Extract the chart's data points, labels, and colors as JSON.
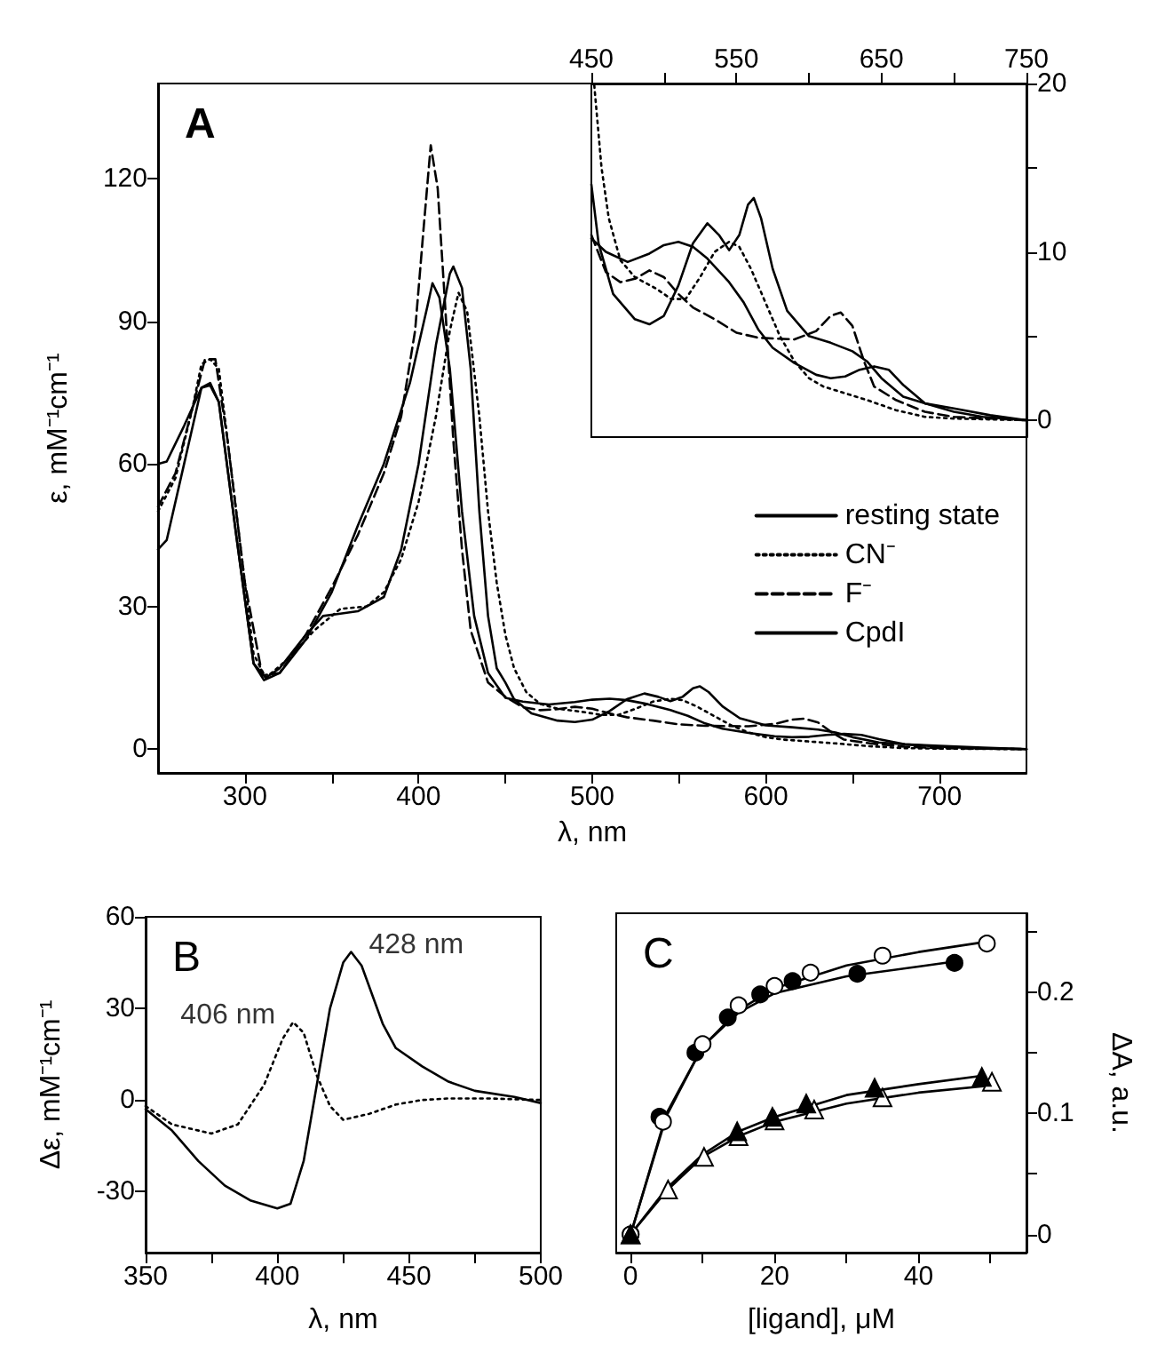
{
  "chart_data": [
    {
      "type": "line",
      "title": "A",
      "xlabel": "λ, nm",
      "ylabel": "ε, mM⁻¹cm⁻¹",
      "xlim": [
        250,
        750
      ],
      "ylim": [
        -5,
        140
      ],
      "xticks": [
        300,
        {
          "value": 350,
          "label": null
        },
        400,
        {
          "value": 450,
          "label": null
        },
        500,
        {
          "value": 550,
          "label": null
        },
        600,
        {
          "value": 650,
          "label": null
        },
        700
      ],
      "yticks": [
        0,
        30,
        60,
        90,
        120
      ],
      "grid": false,
      "legend": "right",
      "marker": "none",
      "series": [
        {
          "name": "resting state",
          "color": "#000000",
          "line_style": "solid",
          "x": [
            250,
            255,
            265,
            275,
            280,
            285,
            295,
            305,
            312,
            320,
            335,
            345,
            355,
            365,
            380,
            390,
            400,
            410,
            418,
            420,
            425,
            430,
            435,
            440,
            445,
            450,
            455,
            465,
            480,
            490,
            500,
            510,
            520,
            530,
            538,
            545,
            552,
            558,
            562,
            567,
            575,
            585,
            600,
            615,
            630,
            640,
            650,
            665,
            680,
            700,
            725,
            750
          ],
          "values": [
            60,
            60.5,
            68,
            76,
            76.5,
            73,
            45,
            18,
            15,
            17,
            24,
            28,
            28.5,
            29,
            32,
            42,
            60,
            85,
            100,
            101.5,
            97,
            80,
            50,
            28,
            17,
            14,
            10.5,
            7.5,
            6,
            5.7,
            6.2,
            8,
            10.5,
            11.7,
            11,
            10.1,
            11,
            12.8,
            13.2,
            12,
            9,
            6.5,
            5,
            4.6,
            4.1,
            3.5,
            2.5,
            1.4,
            1,
            0.7,
            0.3,
            0
          ]
        },
        {
          "name": "CN⁻",
          "color": "#000000",
          "line_style": "dotted",
          "x": [
            250,
            260,
            270,
            275,
            280,
            285,
            295,
            305,
            312,
            325,
            340,
            355,
            370,
            380,
            390,
            400,
            410,
            418,
            423,
            428,
            435,
            440,
            445,
            450,
            455,
            462,
            470,
            480,
            495,
            505,
            515,
            525,
            535,
            545,
            552,
            560,
            570,
            580,
            590,
            600,
            610,
            625,
            640,
            660,
            680,
            700,
            750
          ],
          "values": [
            50,
            57,
            72,
            81,
            82,
            80,
            50,
            20,
            15,
            19,
            25,
            29.5,
            30,
            33,
            40,
            52,
            70,
            88,
            96,
            92,
            70,
            50,
            35,
            24,
            17,
            12,
            9.5,
            8.5,
            7.8,
            7.2,
            7.2,
            8.5,
            10,
            10.6,
            10.3,
            9,
            7,
            5,
            3.5,
            2.5,
            2,
            1.6,
            1.2,
            0.6,
            0.2,
            0.1,
            0
          ]
        },
        {
          "name": "F⁻",
          "color": "#000000",
          "line_style": "dashed",
          "x": [
            250,
            260,
            270,
            277,
            283,
            290,
            300,
            310,
            320,
            335,
            350,
            365,
            380,
            390,
            398,
            403,
            407,
            411,
            415,
            420,
            425,
            430,
            440,
            450,
            460,
            470,
            480,
            490,
            500,
            510,
            520,
            535,
            550,
            565,
            590,
            605,
            615,
            622,
            630,
            638,
            645,
            660,
            680,
            700,
            750
          ],
          "values": [
            51,
            58,
            72,
            82,
            82,
            65,
            35,
            15.5,
            16,
            24,
            34,
            45,
            58,
            70,
            88,
            110,
            127,
            118,
            95,
            65,
            42,
            25,
            14,
            11,
            8.8,
            8.2,
            8.4,
            8.9,
            8.5,
            7.5,
            6.7,
            6,
            5.2,
            4.9,
            4.8,
            5.3,
            6.2,
            6.4,
            5.6,
            3.5,
            2,
            1.2,
            0.5,
            0.2,
            0
          ]
        },
        {
          "name": "CpdI",
          "color": "#000000",
          "line_style": "solid",
          "x": [
            250,
            255,
            265,
            275,
            280,
            285,
            295,
            305,
            311,
            320,
            335,
            350,
            365,
            380,
            395,
            405,
            408,
            412,
            418,
            425,
            432,
            440,
            450,
            460,
            475,
            490,
            500,
            510,
            520,
            530,
            545,
            555,
            565,
            575,
            590,
            605,
            615,
            625,
            635,
            645,
            655,
            665,
            680,
            700,
            720,
            750
          ],
          "values": [
            42,
            44,
            60,
            76,
            77,
            73,
            45,
            18,
            14.5,
            16,
            23,
            33,
            47,
            60,
            77,
            93,
            98,
            95,
            80,
            50,
            28,
            16,
            10.8,
            10,
            9.4,
            9.9,
            10.4,
            10.6,
            10.3,
            9.6,
            8.2,
            7,
            5.4,
            4.3,
            3.4,
            2.7,
            2.5,
            2.6,
            3,
            3.2,
            3,
            2.1,
            1,
            0.5,
            0.2,
            0
          ]
        }
      ]
    },
    {
      "type": "line",
      "xlim": [
        450,
        750
      ],
      "ylim": [
        -1,
        20
      ],
      "xticks": [
        450,
        {
          "value": 500,
          "label": null
        },
        550,
        {
          "value": 600,
          "label": null
        },
        650,
        {
          "value": 700,
          "label": null
        },
        750
      ],
      "yticks": [
        0,
        {
          "value": 5,
          "label": null
        },
        10,
        {
          "value": 15,
          "label": null
        },
        20
      ],
      "grid": false,
      "marker": "none",
      "series": [
        {
          "color": "#000000",
          "line_style": "solid",
          "x": [
            450,
            455,
            465,
            480,
            490,
            500,
            510,
            520,
            530,
            538,
            545,
            552,
            558,
            562,
            567,
            575,
            585,
            600,
            615,
            630,
            640,
            650,
            665,
            680,
            700,
            725,
            750
          ],
          "values": [
            14,
            10.5,
            7.5,
            6,
            5.7,
            6.2,
            8,
            10.5,
            11.7,
            11,
            10.1,
            11,
            12.8,
            13.2,
            12,
            9,
            6.5,
            5,
            4.6,
            4.1,
            3.5,
            2.5,
            1.4,
            1,
            0.7,
            0.3,
            0
          ]
        },
        {
          "color": "#000000",
          "line_style": "dotted",
          "x": [
            452,
            457,
            462,
            470,
            480,
            495,
            505,
            515,
            525,
            535,
            545,
            552,
            560,
            570,
            580,
            590,
            600,
            610,
            625,
            640,
            660,
            680,
            700,
            750
          ],
          "values": [
            19.9,
            15,
            12,
            9.5,
            8.5,
            7.8,
            7.2,
            7.2,
            8.5,
            10,
            10.6,
            10.3,
            9,
            7,
            5,
            3.5,
            2.5,
            2,
            1.6,
            1.2,
            0.6,
            0.2,
            0.1,
            0
          ]
        },
        {
          "color": "#000000",
          "line_style": "dashed",
          "x": [
            450,
            460,
            470,
            480,
            490,
            500,
            510,
            520,
            535,
            550,
            565,
            590,
            605,
            615,
            622,
            630,
            638,
            645,
            660,
            680,
            700,
            750
          ],
          "values": [
            11,
            8.8,
            8.2,
            8.4,
            8.9,
            8.5,
            7.5,
            6.7,
            6,
            5.2,
            4.9,
            4.8,
            5.3,
            6.2,
            6.4,
            5.6,
            3.5,
            2,
            1.2,
            0.5,
            0.2,
            0
          ]
        },
        {
          "color": "#000000",
          "line_style": "solid",
          "x": [
            450,
            460,
            475,
            490,
            500,
            510,
            520,
            530,
            545,
            555,
            565,
            575,
            590,
            605,
            615,
            625,
            635,
            645,
            655,
            665,
            680,
            700,
            720,
            750
          ],
          "values": [
            10.8,
            10,
            9.4,
            9.9,
            10.4,
            10.6,
            10.3,
            9.6,
            8.2,
            7,
            5.4,
            4.3,
            3.4,
            2.7,
            2.5,
            2.6,
            3,
            3.2,
            3,
            2.1,
            1,
            0.5,
            0.2,
            0
          ]
        }
      ]
    },
    {
      "type": "line",
      "title": "B",
      "xlabel": "λ, nm",
      "ylabel": "Δε, mM⁻¹cm⁻¹",
      "xlim": [
        350,
        500
      ],
      "ylim": [
        -50,
        60
      ],
      "xticks": [
        350,
        {
          "value": 375,
          "label": null
        },
        400,
        {
          "value": 425,
          "label": null
        },
        450,
        {
          "value": 475,
          "label": null
        },
        500
      ],
      "yticks": [
        -30,
        0,
        30,
        60
      ],
      "grid": false,
      "marker": "none",
      "annotations": [
        {
          "text": "406 nm",
          "x": 406,
          "y": 25.5
        },
        {
          "text": "428 nm",
          "x": 428,
          "y": 48.5
        }
      ],
      "series": [
        {
          "color": "#000000",
          "line_style": "solid",
          "x": [
            350,
            360,
            370,
            380,
            390,
            400,
            405,
            410,
            415,
            420,
            425,
            428,
            432,
            440,
            445,
            455,
            465,
            475,
            490,
            500
          ],
          "values": [
            -3,
            -10,
            -20,
            -28,
            -33,
            -35.5,
            -34,
            -20,
            5,
            30,
            45,
            48.5,
            44,
            25,
            17,
            11,
            6,
            3,
            1,
            -1
          ]
        },
        {
          "color": "#000000",
          "line_style": "dotted",
          "x": [
            350,
            360,
            375,
            385,
            395,
            402,
            406,
            410,
            415,
            420,
            425,
            435,
            445,
            455,
            465,
            480,
            500
          ],
          "values": [
            -2,
            -8,
            -11,
            -8,
            5,
            20,
            25.5,
            22,
            8,
            -2,
            -6.5,
            -4.5,
            -1.5,
            0,
            0.5,
            0.5,
            0
          ]
        }
      ]
    },
    {
      "type": "scatter",
      "title": "C",
      "xlabel": "[ligand], μM",
      "ylabel": "ΔA, a.u.",
      "xlim": [
        -2,
        55
      ],
      "ylim": [
        -0.015,
        0.265
      ],
      "xticks": [
        0,
        {
          "value": 10,
          "label": null
        },
        20,
        {
          "value": 30,
          "label": null
        },
        40,
        {
          "value": 50,
          "label": null
        }
      ],
      "yticks": [
        0,
        {
          "value": 0.05,
          "label": null
        },
        0.1,
        {
          "value": 0.15,
          "label": null
        },
        0.2,
        {
          "value": 0.25,
          "label": null
        }
      ],
      "grid": false,
      "series": [
        {
          "type": "line",
          "marker": "none",
          "color": "#000000",
          "x": [
            0,
            5,
            10,
            15,
            20,
            30,
            40,
            50
          ],
          "values": [
            0,
            0.098,
            0.155,
            0.185,
            0.203,
            0.222,
            0.233,
            0.242
          ]
        },
        {
          "type": "line",
          "marker": "none",
          "color": "#000000",
          "x": [
            0,
            5,
            10,
            15,
            20,
            30,
            40,
            46
          ],
          "values": [
            0,
            0.1,
            0.155,
            0.183,
            0.199,
            0.213,
            0.221,
            0.226
          ]
        },
        {
          "type": "line",
          "marker": "none",
          "color": "#000000",
          "x": [
            0,
            5,
            10,
            15,
            20,
            30,
            40,
            49
          ],
          "values": [
            0,
            0.038,
            0.066,
            0.085,
            0.097,
            0.115,
            0.124,
            0.131
          ]
        },
        {
          "type": "line",
          "marker": "none",
          "color": "#000000",
          "x": [
            0,
            5,
            10,
            15,
            20,
            30,
            40,
            50.2
          ],
          "values": [
            0,
            0.036,
            0.064,
            0.081,
            0.093,
            0.108,
            0.117,
            0.123
          ]
        },
        {
          "marker": "circle",
          "color": "#000000",
          "x": [
            0,
            4,
            9,
            13.5,
            18,
            22.5,
            31.5,
            45
          ],
          "values": [
            0,
            0.097,
            0.15,
            0.179,
            0.198,
            0.209,
            0.215,
            0.224
          ]
        },
        {
          "marker": "circle",
          "color": "#ffffff",
          "x": [
            0,
            4.5,
            10,
            15,
            20,
            25,
            35,
            49.5
          ],
          "values": [
            0,
            0.093,
            0.157,
            0.189,
            0.205,
            0.216,
            0.23,
            0.24
          ]
        },
        {
          "marker": "triangle",
          "color": "#ffffff",
          "x": [
            0,
            5.2,
            10.2,
            15,
            20,
            25.5,
            35,
            50.2
          ],
          "values": [
            0,
            0.037,
            0.064,
            0.081,
            0.094,
            0.103,
            0.113,
            0.126
          ]
        },
        {
          "marker": "triangle",
          "color": "#000000",
          "x": [
            0,
            5,
            10,
            14.8,
            19.7,
            24.4,
            33.9,
            48.8
          ],
          "values": [
            0,
            null,
            null,
            0.085,
            0.097,
            0.108,
            0.121,
            0.13
          ]
        }
      ]
    }
  ]
}
